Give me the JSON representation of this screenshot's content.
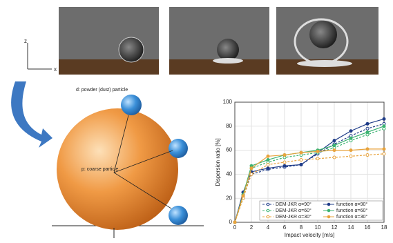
{
  "diagram": {
    "labels": [
      "d: powder (dust) particle",
      "p: coarse particle",
      "z",
      "x"
    ]
  },
  "chart_data": {
    "type": "line",
    "x_label": "Impact velocity [m/s]",
    "y_label": "Dispersion ratio [%]",
    "x": [
      0,
      1,
      2,
      4,
      6,
      8,
      10,
      12,
      14,
      16,
      18
    ],
    "xlim": [
      0,
      18
    ],
    "xticks": [
      0,
      2,
      4,
      6,
      8,
      10,
      12,
      14,
      16,
      18
    ],
    "ylim": [
      0,
      100
    ],
    "yticks": [
      0,
      20,
      40,
      60,
      80,
      100
    ],
    "grid": true,
    "series": [
      {
        "name": "DEM-JKR α=90°",
        "color": "#1f3c88",
        "style": "dashed",
        "marker": "open",
        "values": [
          0,
          22,
          40,
          44,
          46,
          48,
          57,
          65,
          72,
          78,
          82
        ]
      },
      {
        "name": "function α=90°",
        "color": "#1f3c88",
        "style": "solid",
        "marker": "filled",
        "values": [
          0,
          25,
          42,
          45,
          47,
          48,
          58,
          68,
          76,
          82,
          86
        ]
      },
      {
        "name": "DEM-JKR α=60°",
        "color": "#3cb371",
        "style": "dashed",
        "marker": "open",
        "values": [
          0,
          20,
          45,
          50,
          54,
          56,
          58,
          62,
          68,
          73,
          78
        ]
      },
      {
        "name": "function α=60°",
        "color": "#3cb371",
        "style": "solid",
        "marker": "filled",
        "values": [
          0,
          23,
          47,
          52,
          56,
          58,
          60,
          64,
          70,
          75,
          80
        ]
      },
      {
        "name": "DEM-JKR α=30°",
        "color": "#e8a33d",
        "style": "dashed",
        "marker": "open",
        "values": [
          0,
          20,
          40,
          48,
          50,
          52,
          53,
          54,
          55,
          56,
          57
        ]
      },
      {
        "name": "function α=30°",
        "color": "#e8a33d",
        "style": "solid",
        "marker": "filled",
        "values": [
          0,
          22,
          45,
          55,
          56,
          58,
          59,
          60,
          60,
          61,
          61
        ]
      }
    ]
  }
}
